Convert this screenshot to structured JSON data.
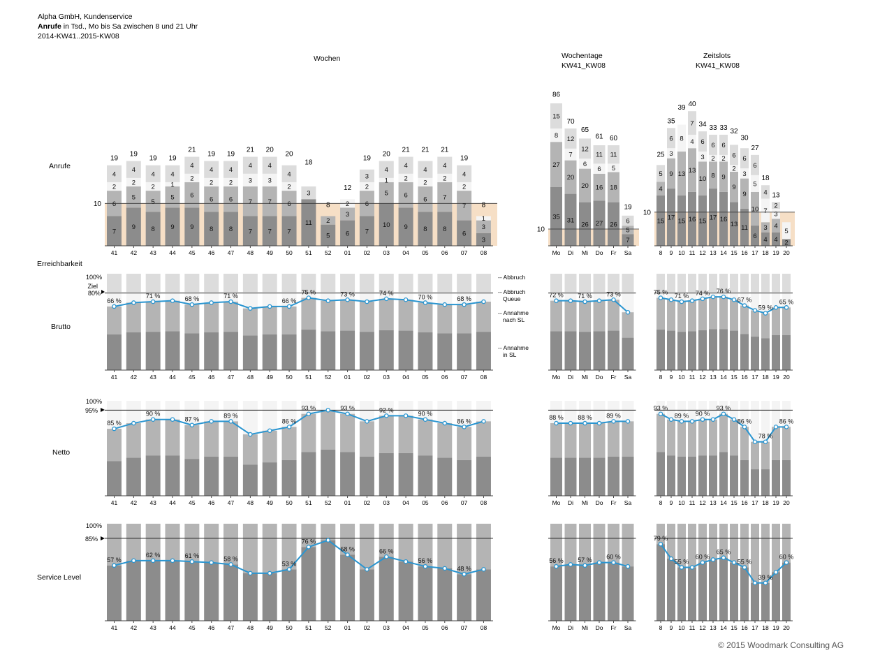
{
  "header": {
    "company": "Alpha GmbH, Kundenservice",
    "title_bold": "Anrufe",
    "title_rest": " in Tsd., Mo bis Sa zwischen 8 und 21 Uhr",
    "period": "2014-KW41..2015-KW08"
  },
  "groups": {
    "weeks_title": "Wochen",
    "weekdays_title": "Wochentage",
    "weekdays_sub": "KW41_KW08",
    "slots_title": "Zeitslots",
    "slots_sub": "KW41_KW08"
  },
  "row_labels": {
    "anrufe": "Anrufe",
    "erreichbarkeit": "Erreichbarkeit",
    "brutto": "Brutto",
    "netto": "Netto",
    "service_level": "Service Level"
  },
  "annotations": {
    "abbruch": "Abbruch",
    "abbruch_queue_1": "Abbruch",
    "abbruch_queue_2": "Queue",
    "annahme_nach_1": "Annahme",
    "annahme_nach_2": "nach SL",
    "annahme_in_1": "Annahme",
    "annahme_in_2": "in SL",
    "ziel": "Ziel",
    "ziel_brutto": "80%",
    "ziel_netto": "95%",
    "ziel_sl": "85%",
    "hundred": "100%",
    "ref_ten": "10"
  },
  "footer": "© 2015 Woodmark Consulting AG",
  "colors": {
    "in_sl": "#8c8c8c",
    "nach_sl": "#b4b4b4",
    "queue": "#f4f4f4",
    "abbruch": "#dcdcdc",
    "line": "#2a95d0",
    "ref_fill": "#f6dfc6"
  },
  "chart_data": [
    {
      "name": "Anrufe",
      "type": "bar",
      "stacked": true,
      "panels": [
        {
          "title": "Wochen",
          "categories": [
            "41",
            "42",
            "43",
            "44",
            "45",
            "46",
            "47",
            "48",
            "49",
            "50",
            "51",
            "52",
            "01",
            "02",
            "03",
            "04",
            "05",
            "06",
            "07",
            "08"
          ],
          "totals": [
            19,
            19,
            19,
            19,
            21,
            19,
            19,
            21,
            20,
            20,
            18,
            8,
            12,
            19,
            20,
            21,
            21,
            21,
            19,
            8
          ],
          "segments": [
            [
              7,
              6,
              2,
              4
            ],
            [
              9,
              5,
              2,
              4
            ],
            [
              8,
              5,
              2,
              4
            ],
            [
              9,
              5,
              1,
              4
            ],
            [
              9,
              6,
              2,
              4
            ],
            [
              8,
              6,
              2,
              4
            ],
            [
              8,
              6,
              2,
              4
            ],
            [
              7,
              7,
              3,
              4
            ],
            [
              7,
              7,
              3,
              4
            ],
            [
              7,
              6,
              2,
              4
            ],
            [
              11,
              "",
              "",
              3
            ],
            [
              5,
              2,
              "",
              ""
            ],
            [
              6,
              3,
              2,
              ""
            ],
            [
              7,
              6,
              2,
              3
            ],
            [
              10,
              5,
              1,
              4
            ],
            [
              9,
              6,
              2,
              4
            ],
            [
              8,
              6,
              2,
              4
            ],
            [
              8,
              7,
              2,
              4
            ],
            [
              6,
              7,
              2,
              4
            ],
            [
              3,
              3,
              1,
              ""
            ]
          ]
        },
        {
          "title": "Wochentage",
          "categories": [
            "Mo",
            "Di",
            "Mi",
            "Do",
            "Fr",
            "Sa"
          ],
          "totals": [
            86,
            70,
            65,
            61,
            60,
            19
          ],
          "segments": [
            [
              35,
              27,
              8,
              15
            ],
            [
              31,
              20,
              7,
              12
            ],
            [
              26,
              20,
              6,
              12
            ],
            [
              27,
              16,
              6,
              11
            ],
            [
              26,
              18,
              5,
              11
            ],
            [
              7,
              5,
              "",
              6
            ]
          ]
        },
        {
          "title": "Zeitslots",
          "categories": [
            "8",
            "9",
            "10",
            "11",
            "12",
            "13",
            "14",
            "15",
            "16",
            "17",
            "18",
            "19",
            "20"
          ],
          "totals": [
            25,
            35,
            39,
            40,
            34,
            33,
            33,
            32,
            30,
            27,
            18,
            13,
            ""
          ],
          "segments": [
            [
              15,
              4,
              "",
              5
            ],
            [
              17,
              9,
              3,
              6
            ],
            [
              15,
              13,
              8,
              ""
            ],
            [
              16,
              13,
              4,
              7
            ],
            [
              15,
              10,
              3,
              6
            ],
            [
              17,
              8,
              2,
              6
            ],
            [
              16,
              9,
              2,
              6
            ],
            [
              13,
              9,
              2,
              6
            ],
            [
              11,
              9,
              3,
              6
            ],
            [
              6,
              10,
              5,
              6
            ],
            [
              4,
              3,
              7,
              4
            ],
            [
              4,
              4,
              3,
              2
            ],
            [
              2,
              "",
              5,
              ""
            ]
          ]
        }
      ],
      "reference_value": 10
    },
    {
      "name": "Brutto",
      "type": "line",
      "series_labels": [
        "Abbruch",
        "Abbruch Queue",
        "Annahme nach SL",
        "Annahme in SL"
      ],
      "target": 80,
      "unit": "%",
      "panels": [
        {
          "categories": [
            "41",
            "42",
            "43",
            "44",
            "45",
            "46",
            "47",
            "48",
            "49",
            "50",
            "51",
            "52",
            "01",
            "02",
            "03",
            "04",
            "05",
            "06",
            "07",
            "08"
          ],
          "values": [
            66,
            70,
            71,
            72,
            68,
            70,
            71,
            64,
            66,
            66,
            75,
            72,
            73,
            71,
            74,
            73,
            70,
            68,
            68,
            71
          ],
          "labeled_indices": [
            0,
            2,
            4,
            6,
            9,
            10,
            12,
            14,
            16,
            18
          ]
        },
        {
          "categories": [
            "Mo",
            "Di",
            "Mi",
            "Do",
            "Fr",
            "Sa"
          ],
          "values": [
            72,
            72,
            71,
            72,
            73,
            60
          ],
          "labeled_indices": [
            0,
            2,
            4
          ]
        },
        {
          "categories": [
            "8",
            "9",
            "10",
            "11",
            "12",
            "13",
            "14",
            "15",
            "16",
            "17",
            "18",
            "19",
            "20"
          ],
          "values": [
            75,
            73,
            71,
            72,
            74,
            76,
            76,
            73,
            67,
            62,
            59,
            65,
            65
          ],
          "labeled_indices": [
            0,
            2,
            4,
            6,
            8,
            10,
            12
          ]
        }
      ]
    },
    {
      "name": "Netto",
      "type": "line",
      "target": 95,
      "unit": "%",
      "panels": [
        {
          "categories": [
            "41",
            "42",
            "43",
            "44",
            "45",
            "46",
            "47",
            "48",
            "49",
            "50",
            "51",
            "52",
            "01",
            "02",
            "03",
            "04",
            "05",
            "06",
            "07",
            "08"
          ],
          "values": [
            85,
            88,
            90,
            90,
            87,
            89,
            89,
            82,
            84,
            86,
            93,
            95,
            93,
            89,
            92,
            92,
            90,
            88,
            86,
            89
          ],
          "labeled_indices": [
            0,
            2,
            4,
            6,
            9,
            10,
            12,
            14,
            16,
            18
          ]
        },
        {
          "categories": [
            "Mo",
            "Di",
            "Mi",
            "Do",
            "Fr",
            "Sa"
          ],
          "values": [
            88,
            88,
            88,
            88,
            89,
            89
          ],
          "labeled_indices": [
            0,
            2,
            4
          ]
        },
        {
          "categories": [
            "8",
            "9",
            "10",
            "11",
            "12",
            "13",
            "14",
            "15",
            "16",
            "17",
            "18",
            "19",
            "20"
          ],
          "values": [
            93,
            90,
            89,
            89,
            90,
            90,
            93,
            90,
            86,
            78,
            78,
            86,
            86
          ],
          "labeled_indices": [
            0,
            2,
            4,
            6,
            8,
            10,
            12
          ]
        }
      ]
    },
    {
      "name": "Service Level",
      "type": "line",
      "target": 85,
      "unit": "%",
      "panels": [
        {
          "categories": [
            "41",
            "42",
            "43",
            "44",
            "45",
            "46",
            "47",
            "48",
            "49",
            "50",
            "51",
            "52",
            "01",
            "02",
            "03",
            "04",
            "05",
            "06",
            "07",
            "08"
          ],
          "values": [
            57,
            62,
            62,
            62,
            61,
            60,
            58,
            49,
            49,
            53,
            76,
            83,
            68,
            53,
            66,
            61,
            56,
            54,
            48,
            53
          ],
          "labeled_indices": [
            0,
            2,
            4,
            6,
            9,
            10,
            12,
            14,
            16,
            18
          ]
        },
        {
          "categories": [
            "Mo",
            "Di",
            "Mi",
            "Do",
            "Fr",
            "Sa"
          ],
          "values": [
            56,
            58,
            57,
            60,
            60,
            56
          ],
          "labeled_indices": [
            0,
            2,
            4
          ]
        },
        {
          "categories": [
            "8",
            "9",
            "10",
            "11",
            "12",
            "13",
            "14",
            "15",
            "16",
            "17",
            "18",
            "19",
            "20"
          ],
          "values": [
            79,
            64,
            55,
            55,
            60,
            63,
            65,
            60,
            55,
            39,
            39,
            50,
            60
          ],
          "labeled_indices": [
            0,
            2,
            4,
            6,
            8,
            10,
            12
          ]
        }
      ]
    }
  ]
}
